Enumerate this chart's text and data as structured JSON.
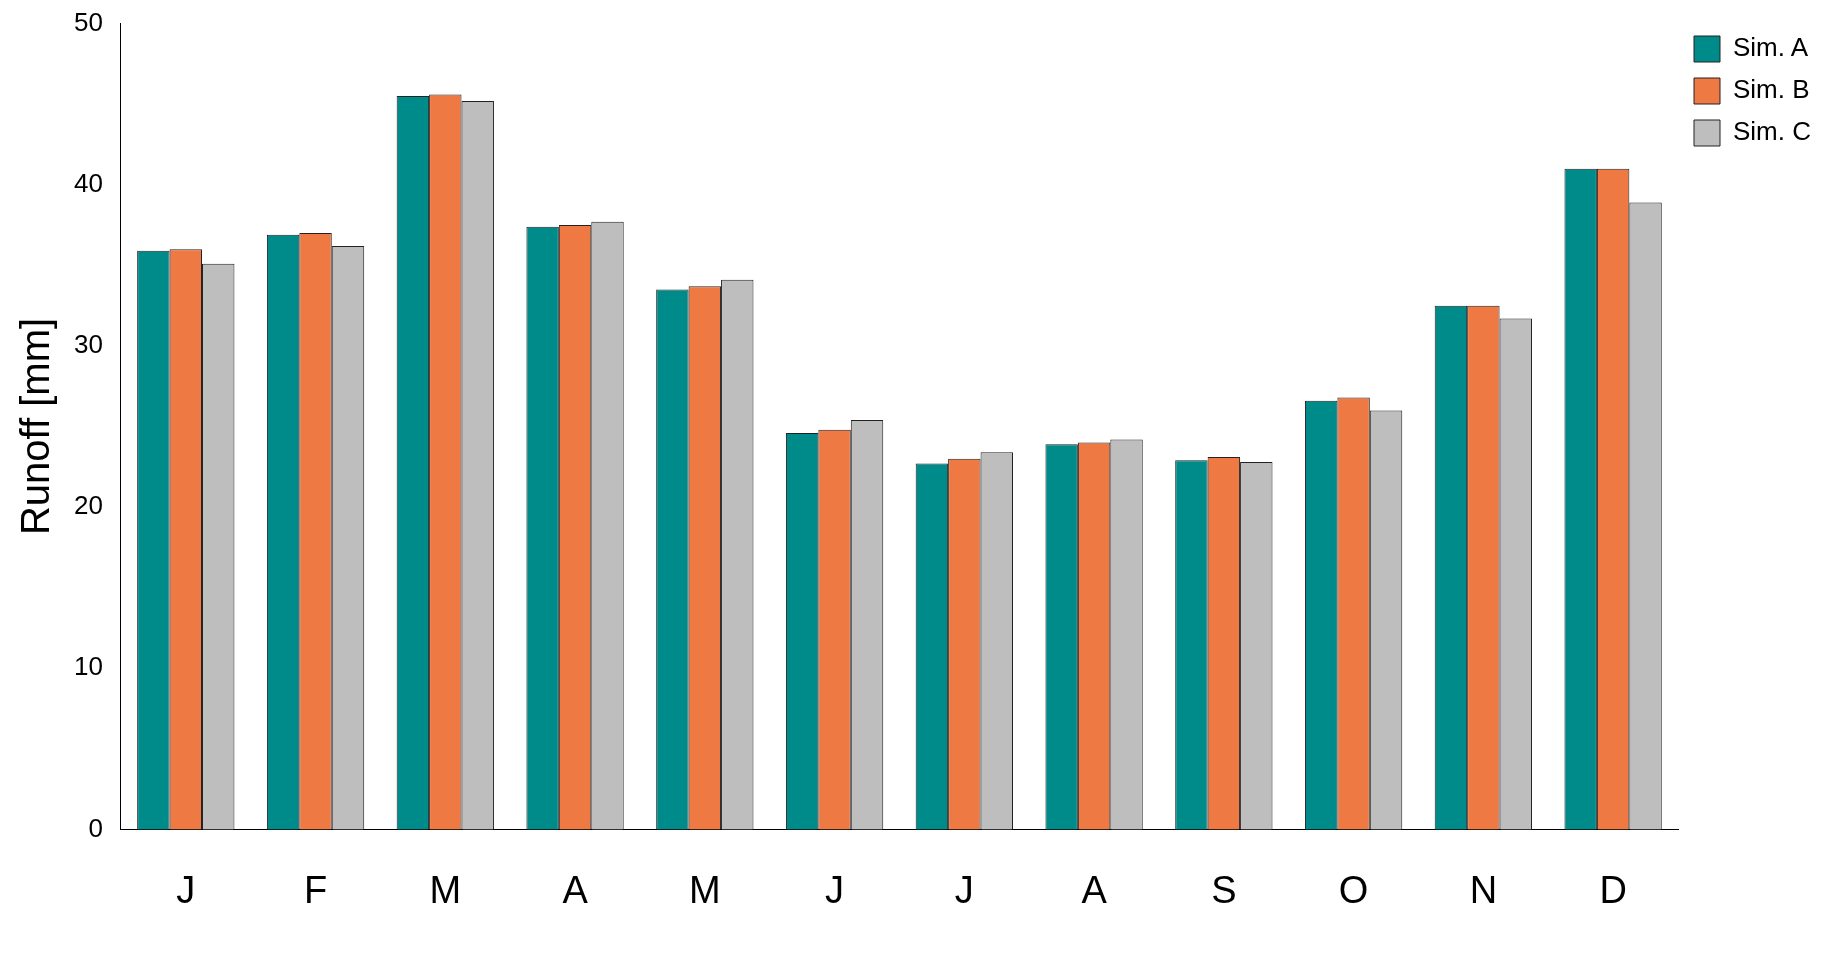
{
  "chart_data": {
    "type": "bar",
    "ylabel": "Runoff [mm]",
    "categories": [
      "J",
      "F",
      "M",
      "A",
      "M",
      "J",
      "J",
      "A",
      "S",
      "O",
      "N",
      "D"
    ],
    "series": [
      {
        "name": "Sim. A",
        "color": "#008b8b",
        "values": [
          35.9,
          36.9,
          45.5,
          37.4,
          33.5,
          24.6,
          22.7,
          23.9,
          22.9,
          26.6,
          32.5,
          41.0
        ]
      },
      {
        "name": "Sim. B",
        "color": "#ee7942",
        "values": [
          36.0,
          37.0,
          45.6,
          37.5,
          33.7,
          24.8,
          23.0,
          24.0,
          23.1,
          26.8,
          32.5,
          41.0
        ]
      },
      {
        "name": "Sim. C",
        "color": "#bebebe",
        "values": [
          35.1,
          36.2,
          45.2,
          37.7,
          34.1,
          25.4,
          23.4,
          24.2,
          22.8,
          26.0,
          31.7,
          38.9
        ]
      }
    ],
    "ylim": [
      0,
      50
    ],
    "yticks": [
      0,
      10,
      20,
      30,
      40,
      50
    ],
    "grid": false,
    "legend": "top right"
  }
}
